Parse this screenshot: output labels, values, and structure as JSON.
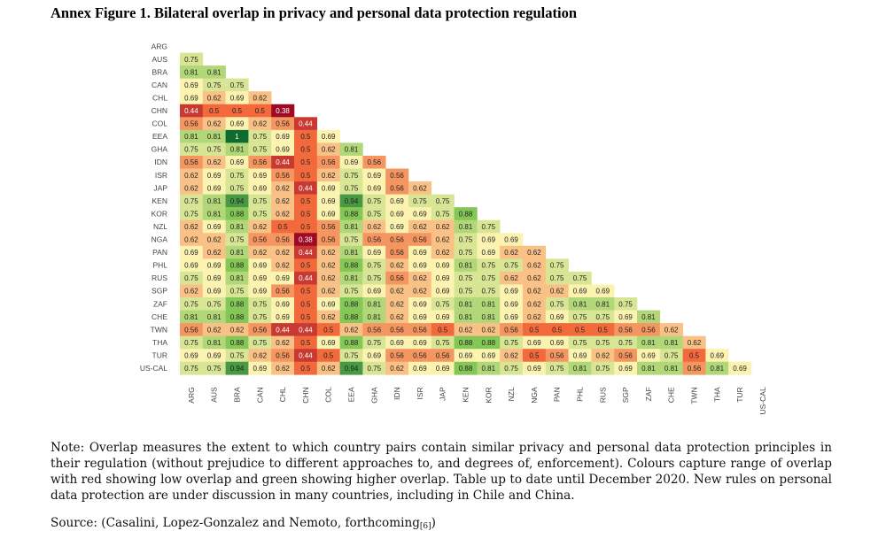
{
  "title": "Annex Figure 1. Bilateral overlap in privacy and personal data protection regulation",
  "note": "Note: Overlap measures the extent to which country pairs contain similar privacy and personal data protection principles in their regulation (without prejudice to different approaches to, and degrees of, enforcement). Colours capture range of overlap with red showing low overlap and green showing higher overlap. Table up to date until December 2020. New rules on personal data protection are under discussion in many countries, including in Chile and China.",
  "source": {
    "text": "Source: (Casalini, Lopez-Gonzalez and Nemoto, forthcoming",
    "ref": "[6]",
    "close": ")"
  },
  "colors": {
    "low": "#9e0a26",
    "mid_low": "#f26a3b",
    "mid": "#fdf3b0",
    "mid_high": "#84c757",
    "high": "#0e6b30"
  },
  "chart_data": {
    "type": "heatmap",
    "title": "Annex Figure 1. Bilateral overlap in privacy and personal data protection regulation",
    "row_labels": [
      "ARG",
      "AUS",
      "BRA",
      "CAN",
      "CHL",
      "CHN",
      "COL",
      "EEA",
      "GHA",
      "IDN",
      "ISR",
      "JAP",
      "KEN",
      "KOR",
      "NZL",
      "NGA",
      "PAN",
      "PHL",
      "RUS",
      "SGP",
      "ZAF",
      "CHE",
      "TWN",
      "THA",
      "TUR",
      "US-CAL"
    ],
    "col_labels": [
      "ARG",
      "AUS",
      "BRA",
      "CAN",
      "CHL",
      "CHN",
      "COL",
      "EEA",
      "GHA",
      "IDN",
      "ISR",
      "JAP",
      "KEN",
      "KOR",
      "NZL",
      "NGA",
      "PAN",
      "PHL",
      "RUS",
      "SGP",
      "ZAF",
      "CHE",
      "TWN",
      "THA",
      "TUR",
      "US-CAL"
    ],
    "lower_triangle_values": [
      [],
      [
        "0.75"
      ],
      [
        "0.81",
        "0.81"
      ],
      [
        "0.69",
        "0.75",
        "0.75"
      ],
      [
        "0.69",
        "0.62",
        "0.69",
        "0.62"
      ],
      [
        "0.44",
        "0.5",
        "0.5",
        "0.5",
        "0.38"
      ],
      [
        "0.56",
        "0.62",
        "0.69",
        "0.62",
        "0.56",
        "0.44"
      ],
      [
        "0.81",
        "0.81",
        "1",
        "0.75",
        "0.69",
        "0.5",
        "0.69"
      ],
      [
        "0.75",
        "0.75",
        "0.81",
        "0.75",
        "0.69",
        "0.5",
        "0.62",
        "0.81"
      ],
      [
        "0.56",
        "0.62",
        "0.69",
        "0.56",
        "0.44",
        "0.5",
        "0.56",
        "0.69",
        "0.56"
      ],
      [
        "0.62",
        "0.69",
        "0.75",
        "0.69",
        "0.56",
        "0.5",
        "0.62",
        "0.75",
        "0.69",
        "0.56"
      ],
      [
        "0.62",
        "0.69",
        "0.75",
        "0.69",
        "0.62",
        "0.44",
        "0.69",
        "0.75",
        "0.69",
        "0.56",
        "0.62"
      ],
      [
        "0.75",
        "0.81",
        "0.94",
        "0.75",
        "0.62",
        "0.5",
        "0.69",
        "0.94",
        "0.75",
        "0.69",
        "0.75",
        "0.75"
      ],
      [
        "0.75",
        "0.81",
        "0.88",
        "0.75",
        "0.62",
        "0.5",
        "0.69",
        "0.88",
        "0.75",
        "0.69",
        "0.69",
        "0.75",
        "0.88"
      ],
      [
        "0.62",
        "0.69",
        "0.81",
        "0.62",
        "0.5",
        "0.5",
        "0.56",
        "0.81",
        "0.62",
        "0.69",
        "0.62",
        "0.62",
        "0.81",
        "0.75"
      ],
      [
        "0.62",
        "0.62",
        "0.75",
        "0.56",
        "0.56",
        "0.38",
        "0.56",
        "0.75",
        "0.56",
        "0.56",
        "0.56",
        "0.62",
        "0.75",
        "0.69",
        "0.69"
      ],
      [
        "0.69",
        "0.62",
        "0.81",
        "0.62",
        "0.62",
        "0.44",
        "0.62",
        "0.81",
        "0.69",
        "0.56",
        "0.69",
        "0.62",
        "0.75",
        "0.69",
        "0.62",
        "0.62"
      ],
      [
        "0.69",
        "0.69",
        "0.88",
        "0.69",
        "0.62",
        "0.5",
        "0.62",
        "0.88",
        "0.75",
        "0.62",
        "0.69",
        "0.69",
        "0.81",
        "0.75",
        "0.75",
        "0.62",
        "0.75"
      ],
      [
        "0.75",
        "0.69",
        "0.81",
        "0.69",
        "0.69",
        "0.44",
        "0.62",
        "0.81",
        "0.75",
        "0.56",
        "0.62",
        "0.69",
        "0.75",
        "0.75",
        "0.62",
        "0.62",
        "0.75",
        "0.75"
      ],
      [
        "0.62",
        "0.69",
        "0.75",
        "0.69",
        "0.56",
        "0.5",
        "0.62",
        "0.75",
        "0.69",
        "0.62",
        "0.62",
        "0.69",
        "0.75",
        "0.75",
        "0.69",
        "0.62",
        "0.62",
        "0.69",
        "0.69"
      ],
      [
        "0.75",
        "0.75",
        "0.88",
        "0.75",
        "0.69",
        "0.5",
        "0.69",
        "0.88",
        "0.81",
        "0.62",
        "0.69",
        "0.75",
        "0.81",
        "0.81",
        "0.69",
        "0.62",
        "0.75",
        "0.81",
        "0.81",
        "0.75"
      ],
      [
        "0.81",
        "0.81",
        "0.88",
        "0.75",
        "0.69",
        "0.5",
        "0.62",
        "0.88",
        "0.81",
        "0.62",
        "0.69",
        "0.69",
        "0.81",
        "0.81",
        "0.69",
        "0.62",
        "0.69",
        "0.75",
        "0.75",
        "0.69",
        "0.81"
      ],
      [
        "0.56",
        "0.62",
        "0.62",
        "0.56",
        "0.44",
        "0.44",
        "0.5",
        "0.62",
        "0.56",
        "0.56",
        "0.56",
        "0.5",
        "0.62",
        "0.62",
        "0.56",
        "0.5",
        "0.5",
        "0.5",
        "0.5",
        "0.56",
        "0.56",
        "0.62"
      ],
      [
        "0.75",
        "0.81",
        "0.88",
        "0.75",
        "0.62",
        "0.5",
        "0.69",
        "0.88",
        "0.75",
        "0.69",
        "0.69",
        "0.75",
        "0.88",
        "0.88",
        "0.75",
        "0.69",
        "0.69",
        "0.75",
        "0.75",
        "0.75",
        "0.81",
        "0.81",
        "0.62"
      ],
      [
        "0.69",
        "0.69",
        "0.75",
        "0.62",
        "0.56",
        "0.44",
        "0.5",
        "0.75",
        "0.69",
        "0.56",
        "0.56",
        "0.56",
        "0.69",
        "0.69",
        "0.62",
        "0.5",
        "0.56",
        "0.69",
        "0.62",
        "0.56",
        "0.69",
        "0.75",
        "0.5",
        "0.69"
      ],
      [
        "0.75",
        "0.75",
        "0.94",
        "0.69",
        "0.62",
        "0.5",
        "0.62",
        "0.94",
        "0.75",
        "0.62",
        "0.69",
        "0.69",
        "0.88",
        "0.81",
        "0.75",
        "0.69",
        "0.75",
        "0.81",
        "0.75",
        "0.69",
        "0.81",
        "0.81",
        "0.56",
        "0.81",
        "0.69"
      ]
    ],
    "color_scale": {
      "min": 0.38,
      "max": 1.0,
      "low_color": "red",
      "high_color": "green"
    },
    "legend": "none",
    "grid": false
  }
}
